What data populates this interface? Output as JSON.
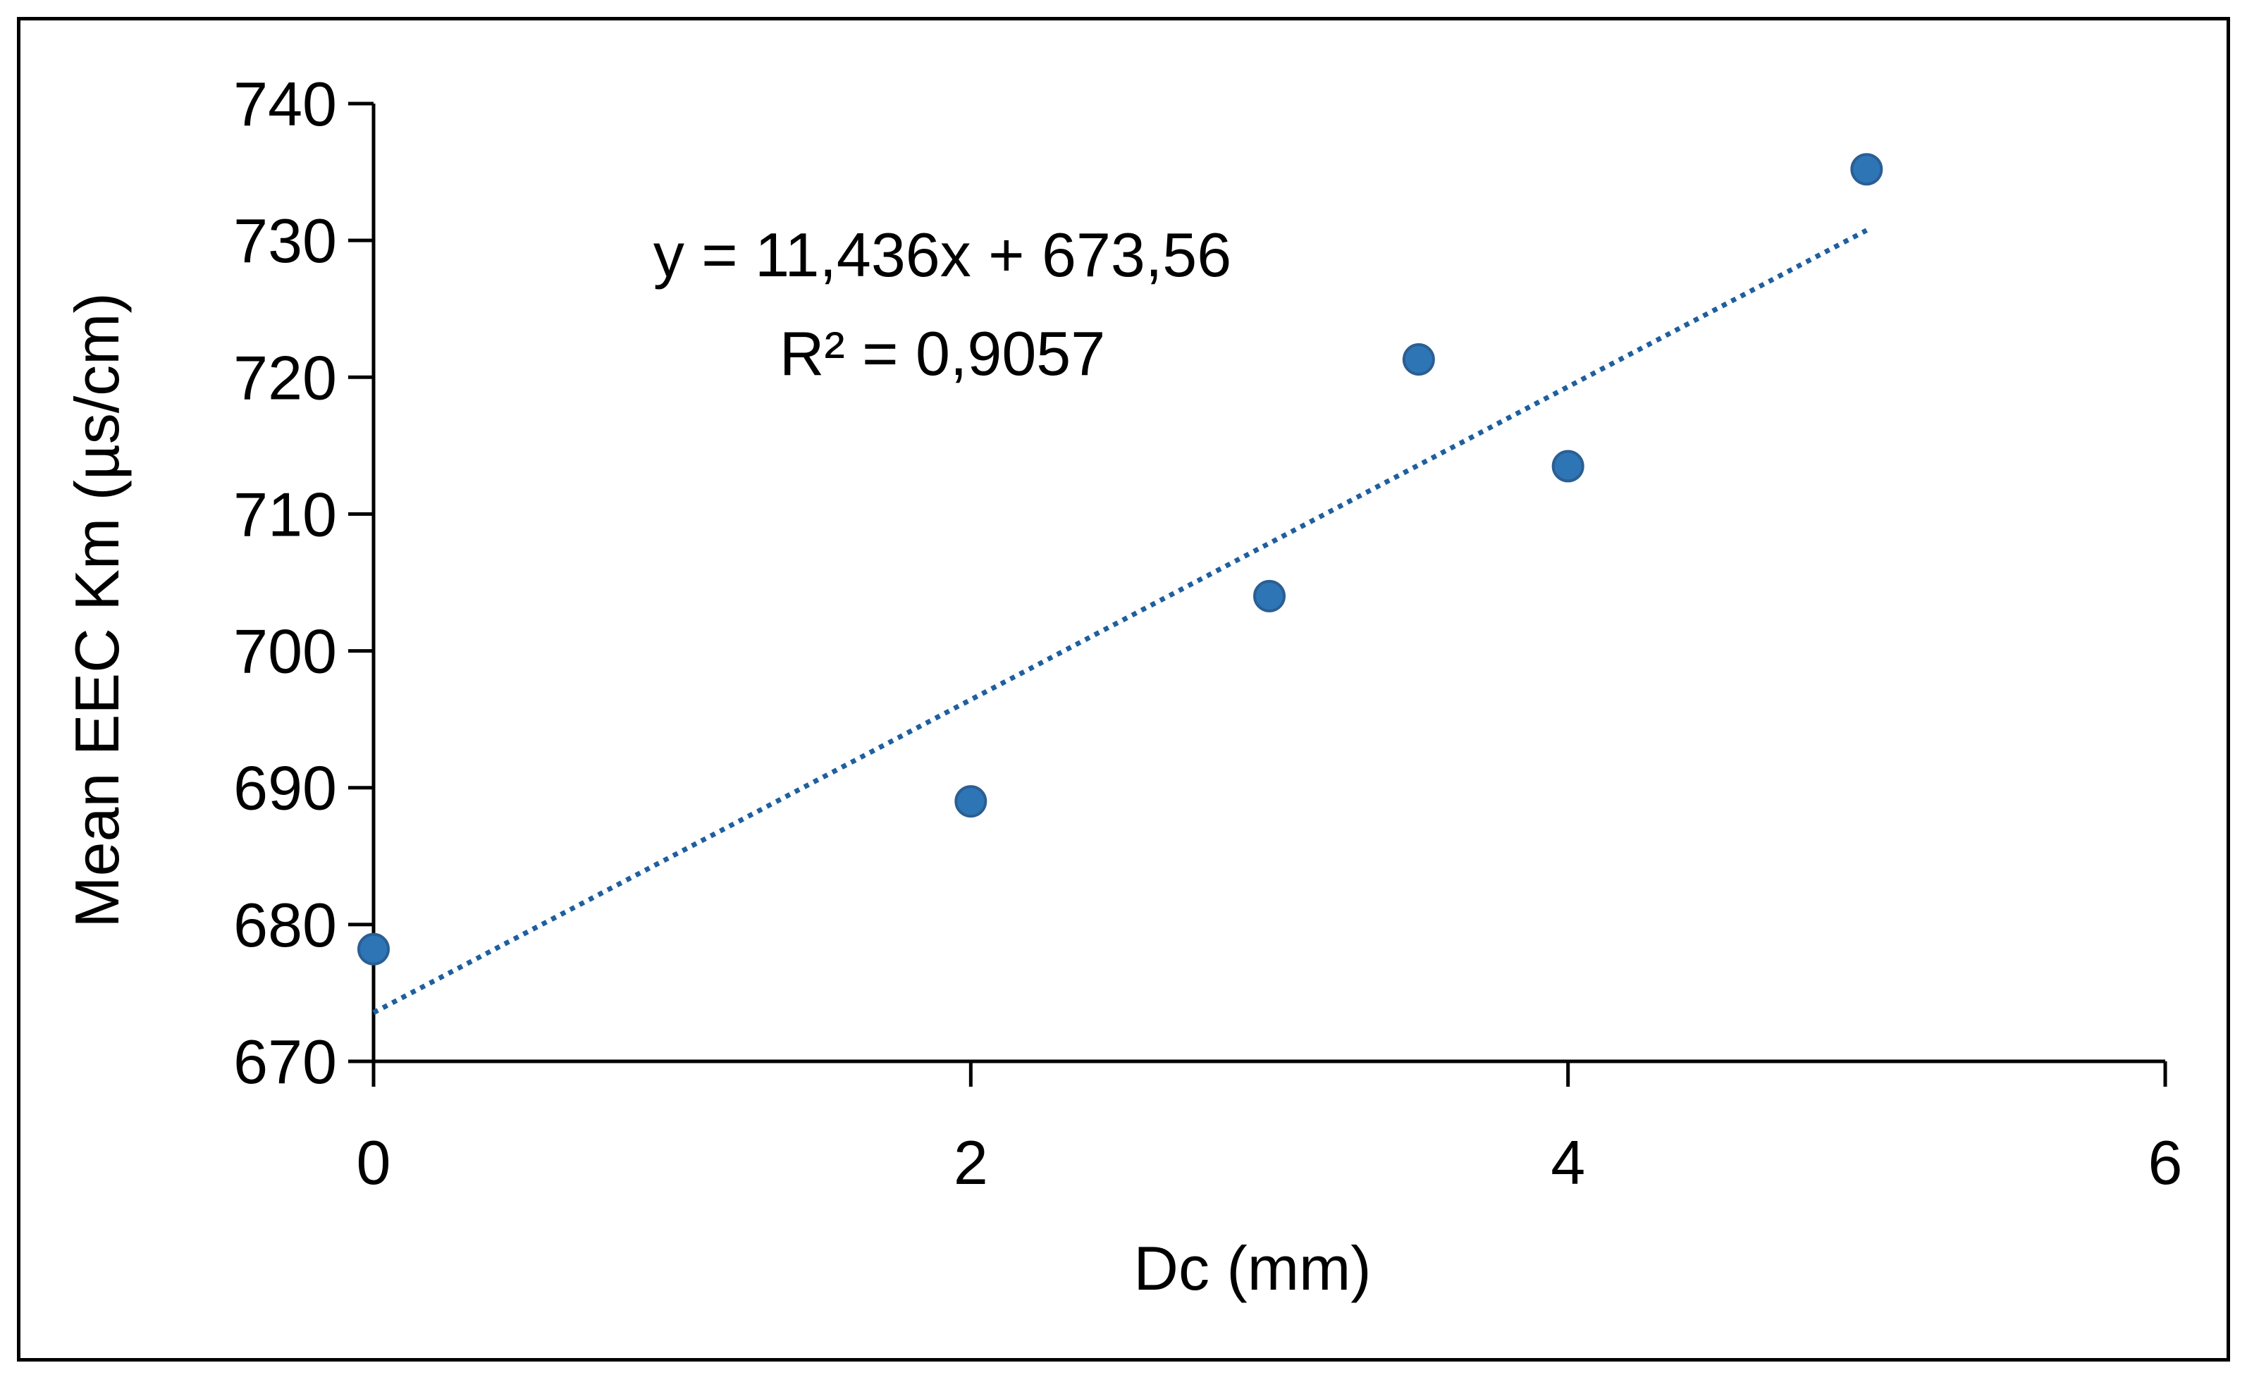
{
  "chart_data": {
    "type": "scatter",
    "title": "",
    "xlabel": "Dc (mm)",
    "ylabel": "Mean EEC Km (µs/cm)",
    "xlim": [
      0,
      6
    ],
    "ylim": [
      670,
      740
    ],
    "xticks": [
      0,
      2,
      4,
      6
    ],
    "yticks": [
      670,
      680,
      690,
      700,
      710,
      720,
      730,
      740
    ],
    "grid": false,
    "legend": "none",
    "series": [
      {
        "x": [
          0,
          2,
          3,
          3.5,
          4,
          5
        ],
        "y": [
          678.2,
          689,
          704,
          721.3,
          713.5,
          735.2
        ],
        "color": "#2E75B6"
      }
    ],
    "trendline": {
      "type": "linear",
      "slope": 11.436,
      "intercept": 673.56,
      "x_range": [
        0,
        5
      ],
      "style": "dotted",
      "color": "#1F5F9E"
    },
    "annotations": {
      "equation": "y = 11,436x + 673,56",
      "r_squared": "R² = 0,9057"
    }
  }
}
